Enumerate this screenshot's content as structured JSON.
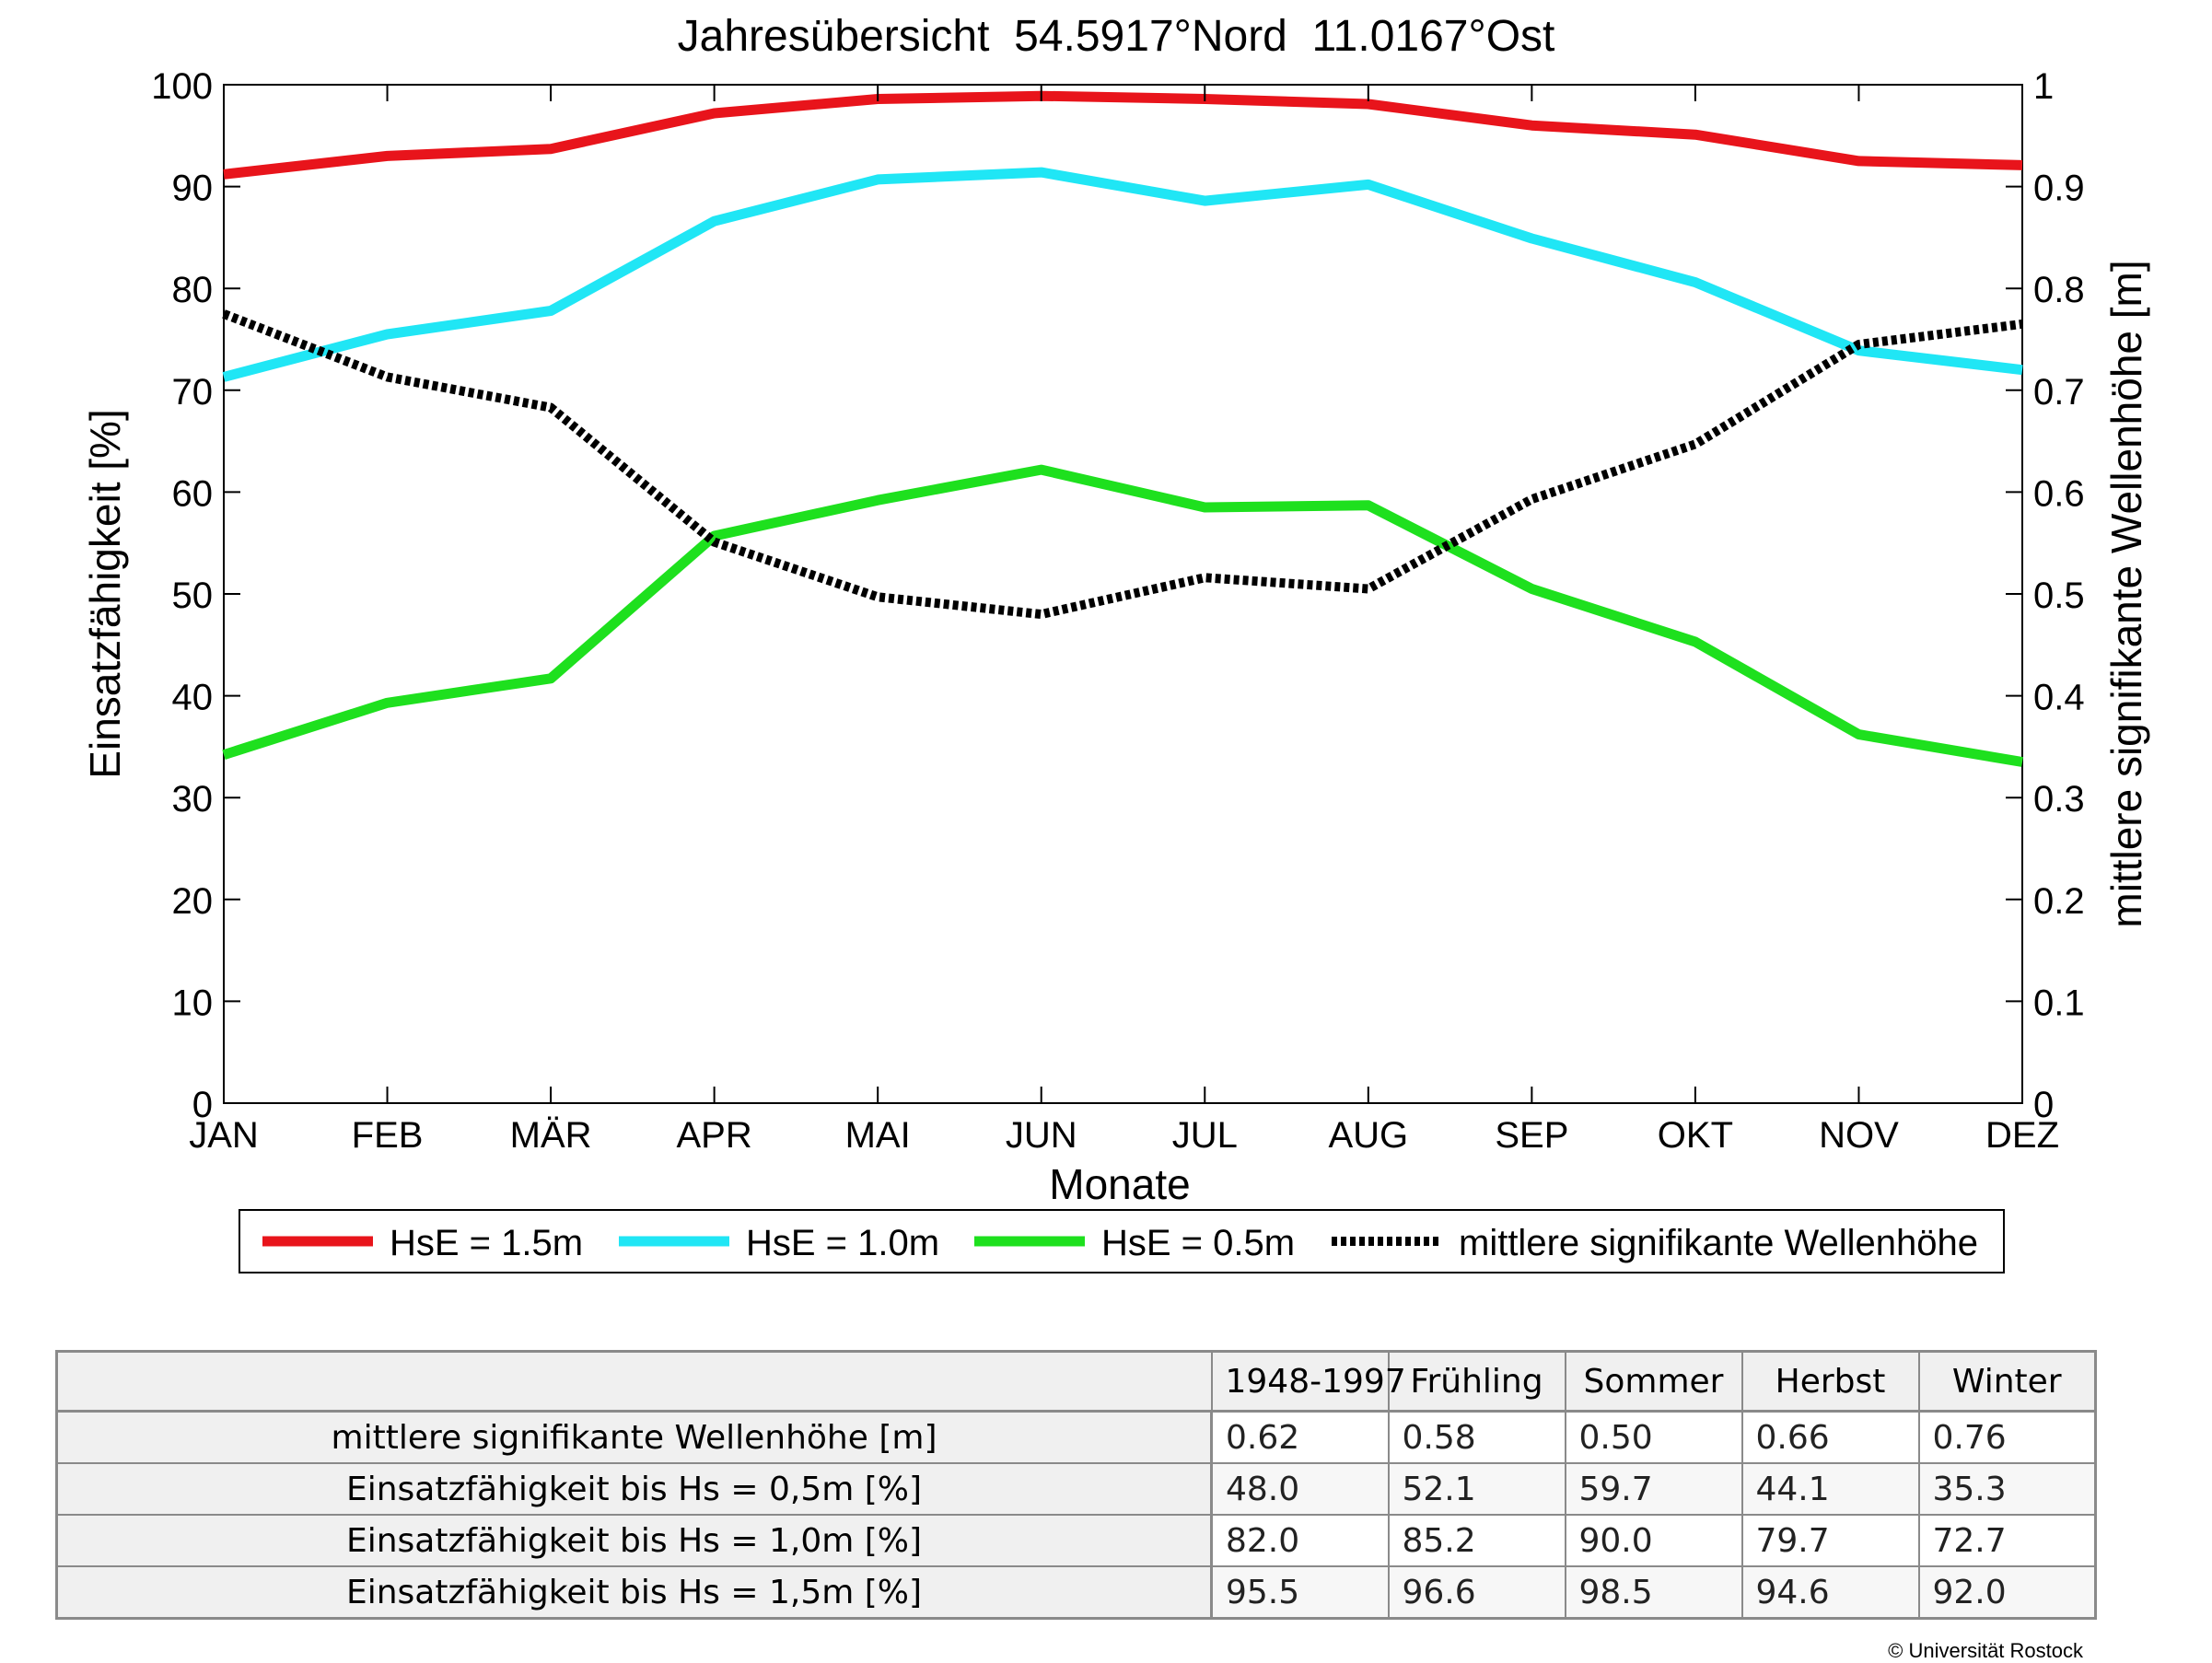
{
  "chart_data": {
    "type": "line",
    "title": "Jahresübersicht  54.5917°Nord  11.0167°Ost",
    "xlabel": "Monate",
    "ylabel": "Einsatzfähigkeit [%]",
    "y2label": "mittlere signifikante Wellenhöhe [m]",
    "categories": [
      "JAN",
      "FEB",
      "MÄR",
      "APR",
      "MAI",
      "JUN",
      "JUL",
      "AUG",
      "SEP",
      "OKT",
      "NOV",
      "DEZ"
    ],
    "ylim": [
      0,
      100
    ],
    "y2lim": [
      0,
      1
    ],
    "yticks": [
      "0",
      "10",
      "20",
      "30",
      "40",
      "50",
      "60",
      "70",
      "80",
      "90",
      "100"
    ],
    "y2ticks": [
      "0",
      "0.1",
      "0.2",
      "0.3",
      "0.4",
      "0.5",
      "0.6",
      "0.7",
      "0.8",
      "0.9",
      "1"
    ],
    "grid": false,
    "legend_position": "bottom",
    "series": [
      {
        "name": "HsE = 1.5m",
        "axis": "left",
        "color": "#e8141b",
        "style": "solid",
        "values": [
          91.2,
          93.0,
          93.7,
          97.2,
          98.6,
          98.9,
          98.6,
          98.1,
          96.0,
          95.1,
          92.5,
          92.1
        ]
      },
      {
        "name": "HsE = 1.0m",
        "axis": "left",
        "color": "#20e6f5",
        "style": "solid",
        "values": [
          71.3,
          75.5,
          77.8,
          86.6,
          90.7,
          91.4,
          88.6,
          90.2,
          84.9,
          80.6,
          73.9,
          72.0
        ]
      },
      {
        "name": "HsE = 0.5m",
        "axis": "left",
        "color": "#1ee01e",
        "style": "solid",
        "values": [
          34.2,
          39.3,
          41.7,
          55.7,
          59.2,
          62.2,
          58.5,
          58.7,
          50.5,
          45.3,
          36.2,
          33.5
        ]
      },
      {
        "name": "mittlere signifikante Wellenhöhe",
        "axis": "right",
        "color": "#000000",
        "style": "dotted",
        "values": [
          0.775,
          0.713,
          0.683,
          0.551,
          0.497,
          0.48,
          0.516,
          0.505,
          0.593,
          0.647,
          0.745,
          0.765
        ]
      }
    ]
  },
  "table": {
    "headers": [
      "",
      "1948-1997",
      "Frühling",
      "Sommer",
      "Herbst",
      "Winter"
    ],
    "rows": [
      {
        "label": "mittlere signifikante Wellenhöhe [m]",
        "values": [
          "0.62",
          "0.58",
          "0.50",
          "0.66",
          "0.76"
        ]
      },
      {
        "label": "Einsatzfähigkeit bis Hs = 0,5m [%]",
        "values": [
          "48.0",
          "52.1",
          "59.7",
          "44.1",
          "35.3"
        ]
      },
      {
        "label": "Einsatzfähigkeit bis Hs = 1,0m [%]",
        "values": [
          "82.0",
          "85.2",
          "90.0",
          "79.7",
          "72.7"
        ]
      },
      {
        "label": "Einsatzfähigkeit bis Hs = 1,5m [%]",
        "values": [
          "95.5",
          "96.6",
          "98.5",
          "94.6",
          "92.0"
        ]
      }
    ]
  },
  "copyright": "© Universität Rostock"
}
